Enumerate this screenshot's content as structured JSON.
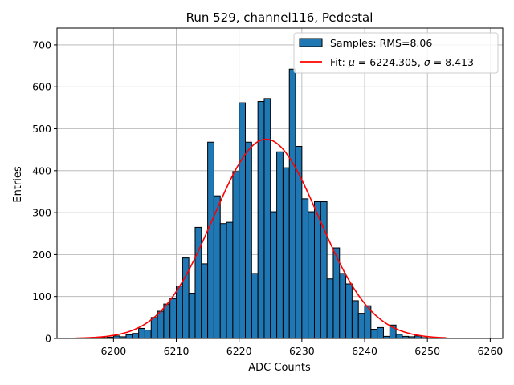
{
  "chart_data": {
    "type": "bar",
    "title": "Run 529, channel116, Pedestal",
    "xlabel": "ADC Counts",
    "ylabel": "Entries",
    "xlim": [
      6191,
      6262
    ],
    "ylim": [
      0,
      740
    ],
    "x_ticks": [
      6200,
      6210,
      6220,
      6230,
      6240,
      6250,
      6260
    ],
    "y_ticks": [
      0,
      100,
      200,
      300,
      400,
      500,
      600,
      700
    ],
    "grid": true,
    "legend_position": "top-right",
    "bar_color": "#1f77b4",
    "fit_color": "#ff0000",
    "histogram": {
      "legend": "Samples: RMS=8.06",
      "bin_width": 1,
      "bin_starts": [
        6196,
        6197,
        6198,
        6199,
        6200,
        6201,
        6202,
        6203,
        6204,
        6205,
        6206,
        6207,
        6208,
        6209,
        6210,
        6211,
        6212,
        6213,
        6214,
        6215,
        6216,
        6217,
        6218,
        6219,
        6220,
        6221,
        6222,
        6223,
        6224,
        6225,
        6226,
        6227,
        6228,
        6229,
        6230,
        6231,
        6232,
        6233,
        6234,
        6235,
        6236,
        6237,
        6238,
        6239,
        6240,
        6241,
        6242,
        6243,
        6244,
        6245,
        6246,
        6247,
        6248,
        6249,
        6250,
        6251,
        6252
      ],
      "values": [
        1,
        1,
        2,
        3,
        6,
        4,
        9,
        12,
        24,
        20,
        50,
        65,
        82,
        95,
        125,
        192,
        108,
        265,
        178,
        468,
        340,
        274,
        277,
        398,
        562,
        468,
        155,
        565,
        572,
        302,
        445,
        407,
        642,
        458,
        333,
        302,
        326,
        326,
        142,
        216,
        155,
        130,
        90,
        60,
        78,
        22,
        26,
        5,
        32,
        10,
        5,
        4,
        6,
        2,
        1,
        1,
        1
      ]
    },
    "fit": {
      "legend_prefix": "Fit: ",
      "legend_mu_symbol": "μ",
      "legend_mu_value": " = 6224.305, ",
      "legend_sigma_symbol": "σ",
      "legend_sigma_value": " = 8.413",
      "mu": 6224.305,
      "sigma": 8.413,
      "amplitude": 475,
      "x_range": [
        6194,
        6253
      ]
    }
  }
}
